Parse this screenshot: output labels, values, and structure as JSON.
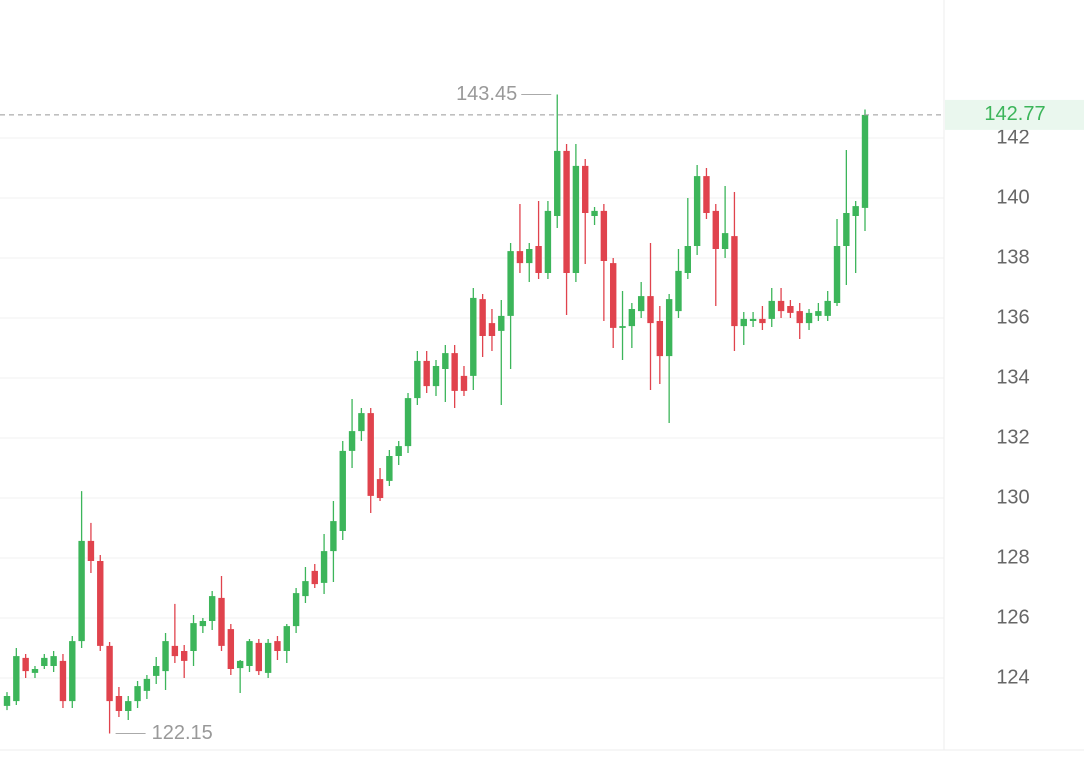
{
  "chart_data": {
    "type": "candlestick",
    "up_color": "#3cb55a",
    "down_color": "#e0434d",
    "ylim": [
      121.6,
      146.6
    ],
    "yticks": [
      124,
      126,
      128,
      130,
      132,
      134,
      136,
      138,
      140,
      142
    ],
    "grid": true,
    "open": [
      123.07,
      123.23,
      124.67,
      124.17,
      124.4,
      124.4,
      124.57,
      123.23,
      125.23,
      128.57,
      127.9,
      125.07,
      123.4,
      122.9,
      123.23,
      123.57,
      124.07,
      124.23,
      125.07,
      124.9,
      124.9,
      125.73,
      125.9,
      126.67,
      125.63,
      124.33,
      124.4,
      125.17,
      124.17,
      125.23,
      124.9,
      125.73,
      126.73,
      127.57,
      127.17,
      128.23,
      128.9,
      131.57,
      132.23,
      132.83,
      130.63,
      130.57,
      131.4,
      131.73,
      133.33,
      134.57,
      133.73,
      134.3,
      134.83,
      134.07,
      134.07,
      136.63,
      135.83,
      135.57,
      136.07,
      138.23,
      137.83,
      138.4,
      137.5,
      139.4,
      141.57,
      137.5,
      141.07,
      139.4,
      139.57,
      137.83,
      135.67,
      135.73,
      136.23,
      136.73,
      135.9,
      134.73,
      136.23,
      137.5,
      138.4,
      140.73,
      139.57,
      138.3,
      138.73,
      135.73,
      135.9,
      135.97,
      135.97,
      136.57,
      136.4,
      136.23,
      135.83,
      136.07,
      136.07,
      136.5,
      138.4,
      139.4,
      139.67
    ],
    "high": [
      123.53,
      125.0,
      124.8,
      124.4,
      124.8,
      124.9,
      124.8,
      125.4,
      130.23,
      129.17,
      128.1,
      125.2,
      123.7,
      123.4,
      123.9,
      124.1,
      124.7,
      125.5,
      126.47,
      125.1,
      126.1,
      126.0,
      126.9,
      127.4,
      125.8,
      124.6,
      125.3,
      125.3,
      125.3,
      125.4,
      125.8,
      127.0,
      127.7,
      127.8,
      128.8,
      129.9,
      131.9,
      133.3,
      133.0,
      133.0,
      131.0,
      131.6,
      131.9,
      133.5,
      134.9,
      134.9,
      134.6,
      135.1,
      135.1,
      134.4,
      137.0,
      136.8,
      136.3,
      136.6,
      138.5,
      139.8,
      138.5,
      139.9,
      139.9,
      143.45,
      141.8,
      141.8,
      141.3,
      139.7,
      139.8,
      138.0,
      136.9,
      136.5,
      137.2,
      138.5,
      136.4,
      136.8,
      138.3,
      140.0,
      141.1,
      141.0,
      139.8,
      140.4,
      140.2,
      136.2,
      136.2,
      136.4,
      137.0,
      137.0,
      136.6,
      136.5,
      136.3,
      136.5,
      136.9,
      139.3,
      141.6,
      139.9,
      142.95
    ],
    "low": [
      122.93,
      123.1,
      124.0,
      124.0,
      124.3,
      124.2,
      123.0,
      123.0,
      125.0,
      127.5,
      124.9,
      122.15,
      122.7,
      122.6,
      123.0,
      123.3,
      123.8,
      123.6,
      124.5,
      124.0,
      124.4,
      125.5,
      125.6,
      124.9,
      124.1,
      123.5,
      124.2,
      124.1,
      124.0,
      124.6,
      124.5,
      125.5,
      126.5,
      127.0,
      126.8,
      127.2,
      128.6,
      131.0,
      131.9,
      129.5,
      129.9,
      130.4,
      131.1,
      131.5,
      133.1,
      133.5,
      133.4,
      133.2,
      133.0,
      133.4,
      133.6,
      134.7,
      134.9,
      133.1,
      134.3,
      137.5,
      137.2,
      137.3,
      137.3,
      139.0,
      136.1,
      137.2,
      137.8,
      139.1,
      135.9,
      135.0,
      134.6,
      135.0,
      136.0,
      133.6,
      133.8,
      132.5,
      136.0,
      137.3,
      138.1,
      139.3,
      136.4,
      138.0,
      134.9,
      135.1,
      135.7,
      135.6,
      135.7,
      136.0,
      136.0,
      135.3,
      135.6,
      135.9,
      135.9,
      136.4,
      137.1,
      137.5,
      138.9
    ],
    "close": [
      123.4,
      124.73,
      124.23,
      124.3,
      124.67,
      124.73,
      123.23,
      125.23,
      128.57,
      127.9,
      125.07,
      123.23,
      122.9,
      123.23,
      123.73,
      123.97,
      124.4,
      125.23,
      124.73,
      124.57,
      125.83,
      125.9,
      126.73,
      125.07,
      124.3,
      124.57,
      125.23,
      124.23,
      125.17,
      124.9,
      125.73,
      126.83,
      127.23,
      127.13,
      128.23,
      129.23,
      131.57,
      132.23,
      132.83,
      130.07,
      130.0,
      131.4,
      131.73,
      133.33,
      134.57,
      133.73,
      134.4,
      134.83,
      133.57,
      133.57,
      136.67,
      135.4,
      135.4,
      136.07,
      138.23,
      137.83,
      138.3,
      137.5,
      139.57,
      141.57,
      137.5,
      141.07,
      139.5,
      139.57,
      137.9,
      135.67,
      135.73,
      136.3,
      136.73,
      135.83,
      134.73,
      136.63,
      137.57,
      138.4,
      140.73,
      139.5,
      138.3,
      138.83,
      135.73,
      135.97,
      135.97,
      135.83,
      136.57,
      136.23,
      136.17,
      135.83,
      136.17,
      136.23,
      136.57,
      138.4,
      139.5,
      139.73,
      142.77
    ],
    "high_marker": 143.45,
    "low_marker": 122.15,
    "last_price": 142.77
  }
}
